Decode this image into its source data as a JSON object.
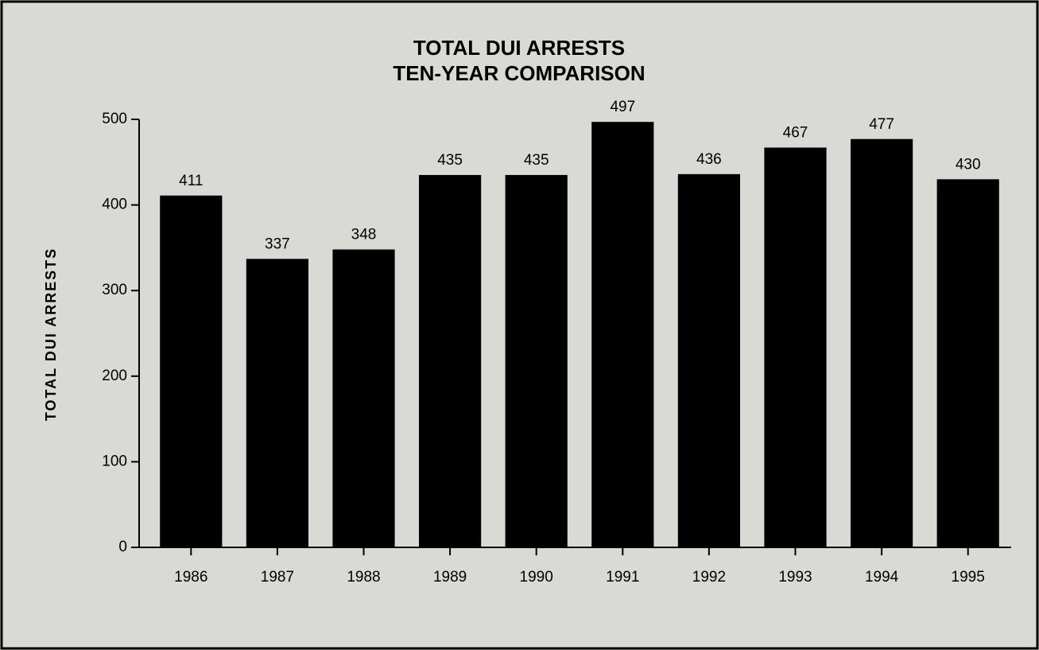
{
  "chart_data": {
    "type": "bar",
    "title": "TOTAL DUI ARRESTS",
    "subtitle": "TEN-YEAR COMPARISON",
    "y_label": "TOTAL DUI ARRESTS",
    "categories": [
      "1986",
      "1987",
      "1988",
      "1989",
      "1990",
      "1991",
      "1992",
      "1993",
      "1994",
      "1995"
    ],
    "values": [
      411,
      337,
      348,
      435,
      435,
      497,
      436,
      467,
      477,
      430
    ],
    "color": "#000000",
    "ylim": [
      0,
      500
    ],
    "yticks": [
      0,
      100,
      200,
      300,
      400,
      500
    ],
    "grid": false
  }
}
